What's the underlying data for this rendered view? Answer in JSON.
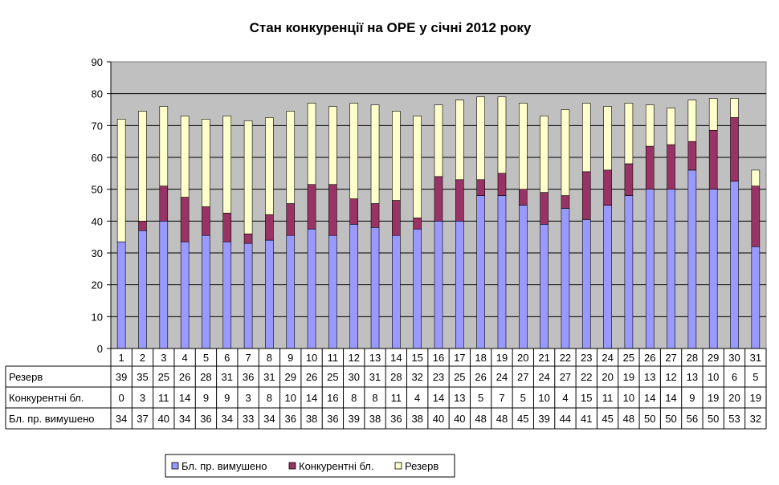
{
  "chart_data": {
    "type": "bar",
    "stacked": true,
    "title": "Стан конкуренції на ОРЕ  у січні 2012 року",
    "categories": [
      "1",
      "2",
      "3",
      "4",
      "5",
      "6",
      "7",
      "8",
      "9",
      "10",
      "11",
      "12",
      "13",
      "14",
      "15",
      "16",
      "17",
      "18",
      "19",
      "20",
      "21",
      "22",
      "23",
      "24",
      "25",
      "26",
      "27",
      "28",
      "29",
      "30",
      "31"
    ],
    "ylim": [
      0,
      90
    ],
    "yticks": [
      0,
      10,
      20,
      30,
      40,
      50,
      60,
      70,
      80,
      90
    ],
    "grid": true,
    "legend_position": "bottom",
    "series": [
      {
        "name": "Бл. пр. вимушено",
        "color": "#9999ff",
        "values": [
          33.5,
          37,
          40,
          33.5,
          35.5,
          33.5,
          33,
          34,
          35.5,
          37.5,
          35.5,
          39,
          38,
          35.5,
          37.5,
          40,
          40,
          48,
          48,
          45,
          39,
          44,
          40.5,
          45,
          48,
          50,
          50,
          56,
          50,
          52.5,
          32
        ],
        "labels": [
          "34",
          "37",
          "40",
          "34",
          "36",
          "34",
          "33",
          "34",
          "36",
          "38",
          "36",
          "39",
          "38",
          "36",
          "38",
          "40",
          "40",
          "48",
          "48",
          "45",
          "39",
          "44",
          "41",
          "45",
          "48",
          "50",
          "50",
          "56",
          "50",
          "53",
          "32"
        ]
      },
      {
        "name": "Конкурентні бл.",
        "color": "#993366",
        "values": [
          0,
          3,
          11,
          14,
          9,
          9,
          3,
          8,
          10,
          14,
          16,
          8,
          7.5,
          11,
          3.5,
          14,
          13,
          5,
          7,
          5,
          10,
          4,
          15,
          11,
          10,
          13.5,
          14,
          9,
          18.5,
          20,
          19
        ],
        "labels": [
          "0",
          "3",
          "11",
          "14",
          "9",
          "9",
          "3",
          "8",
          "10",
          "14",
          "16",
          "8",
          "8",
          "11",
          "4",
          "14",
          "13",
          "5",
          "7",
          "5",
          "10",
          "4",
          "15",
          "11",
          "10",
          "14",
          "14",
          "9",
          "19",
          "20",
          "19"
        ]
      },
      {
        "name": "Резерв",
        "color": "#ffffcc",
        "values": [
          38.5,
          34.5,
          25,
          25.5,
          27.5,
          30.5,
          35.5,
          30.5,
          29,
          25.5,
          24.5,
          30,
          31,
          28,
          32,
          22.5,
          25,
          26,
          24,
          27,
          24,
          27,
          21.5,
          20,
          19,
          13,
          11.5,
          13,
          10,
          6,
          5
        ],
        "labels": [
          "39",
          "35",
          "25",
          "26",
          "28",
          "31",
          "36",
          "31",
          "29",
          "26",
          "25",
          "30",
          "31",
          "28",
          "32",
          "23",
          "25",
          "26",
          "24",
          "27",
          "24",
          "27",
          "22",
          "20",
          "19",
          "13",
          "12",
          "13",
          "10",
          "6",
          "5"
        ]
      }
    ],
    "table_rows": [
      "Резерв",
      "Конкурентні бл.",
      "Бл. пр. вимушено"
    ],
    "legend": [
      "Бл. пр. вимушено",
      "Конкурентні бл.",
      "Резерв"
    ]
  }
}
